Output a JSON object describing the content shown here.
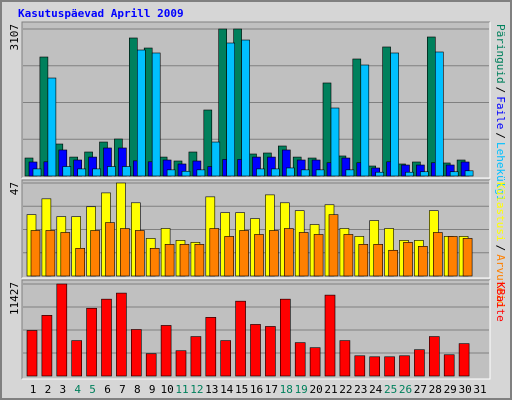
{
  "chart_data": [
    {
      "type": "bar",
      "title": "Kasutuspäevad Aprill 2009",
      "legend_separator": "/",
      "ylim": [
        0,
        3107
      ],
      "yticks": [
        3107
      ],
      "series": [
        {
          "name": "Päringuid",
          "color": "#00805c",
          "values": [
            380,
            2515,
            676,
            400,
            507,
            718,
            782,
            2917,
            2705,
            400,
            317,
            507,
            1395,
            3107,
            3107,
            465,
            486,
            634,
            400,
            380,
            1966,
            423,
            2473,
            211,
            2727,
            254,
            296,
            2938,
            275,
            338,
            null
          ]
        },
        {
          "name": "Faile",
          "color": "#0000ff",
          "values": [
            296,
            300,
            550,
            338,
            400,
            592,
            592,
            320,
            300,
            338,
            254,
            317,
            200,
            350,
            350,
            400,
            400,
            550,
            338,
            338,
            280,
            380,
            280,
            169,
            300,
            232,
            232,
            280,
            232,
            296,
            null
          ]
        },
        {
          "name": "Lehekülgi",
          "color": "#00c0ff",
          "values": [
            150,
            2071,
            200,
            150,
            150,
            200,
            200,
            2663,
            2600,
            130,
            100,
            130,
            718,
            2811,
            2874,
            150,
            150,
            170,
            130,
            130,
            1437,
            130,
            2346,
            80,
            2600,
            80,
            90,
            2621,
            90,
            110,
            null
          ]
        }
      ]
    },
    {
      "type": "bar",
      "legend_separator": "/",
      "ylim": [
        0,
        47
      ],
      "yticks": [
        47
      ],
      "series": [
        {
          "name": "Külastusi",
          "color": "#ffff00",
          "values": [
            31,
            39,
            30,
            30,
            35,
            42,
            47,
            37,
            19,
            24,
            18,
            17,
            40,
            32,
            32,
            29,
            41,
            37,
            33,
            26,
            36,
            24,
            20,
            28,
            24,
            18,
            18,
            33,
            20,
            20,
            null
          ]
        },
        {
          "name": "Arvuteid",
          "color": "#ff8000",
          "values": [
            23,
            23,
            22,
            14,
            23,
            27,
            24,
            23,
            14,
            16,
            16,
            16,
            24,
            20,
            23,
            21,
            23,
            24,
            22,
            21,
            31,
            21,
            16,
            16,
            13,
            17,
            15,
            22,
            20,
            19,
            null
          ]
        }
      ]
    },
    {
      "type": "bar",
      "ylim": [
        0,
        11427
      ],
      "yticks": [
        11427
      ],
      "categories": [
        "1",
        "2",
        "3",
        "4",
        "5",
        "6",
        "7",
        "8",
        "9",
        "10",
        "11",
        "12",
        "13",
        "14",
        "15",
        "16",
        "17",
        "18",
        "19",
        "20",
        "21",
        "22",
        "23",
        "24",
        "25",
        "26",
        "27",
        "28",
        "29",
        "30",
        "31"
      ],
      "category_colors": [
        "#000000",
        "#000000",
        "#000000",
        "#00805c",
        "#00805c",
        "#000000",
        "#000000",
        "#000000",
        "#000000",
        "#000000",
        "#00805c",
        "#00805c",
        "#000000",
        "#000000",
        "#000000",
        "#000000",
        "#000000",
        "#00805c",
        "#00805c",
        "#000000",
        "#000000",
        "#000000",
        "#000000",
        "#000000",
        "#00805c",
        "#00805c",
        "#000000",
        "#000000",
        "#000000",
        "#000000",
        "#000000"
      ],
      "series": [
        {
          "name": "KBaite",
          "color": "#ff0000",
          "values": [
            5650,
            7536,
            11427,
            4396,
            8415,
            9545,
            10298,
            5777,
            2763,
            6280,
            3140,
            4898,
            7285,
            4396,
            9294,
            6405,
            6154,
            9545,
            4145,
            3517,
            10047,
            4396,
            2512,
            2386,
            2386,
            2512,
            3266,
            4898,
            2638,
            4019,
            null
          ]
        }
      ]
    }
  ]
}
